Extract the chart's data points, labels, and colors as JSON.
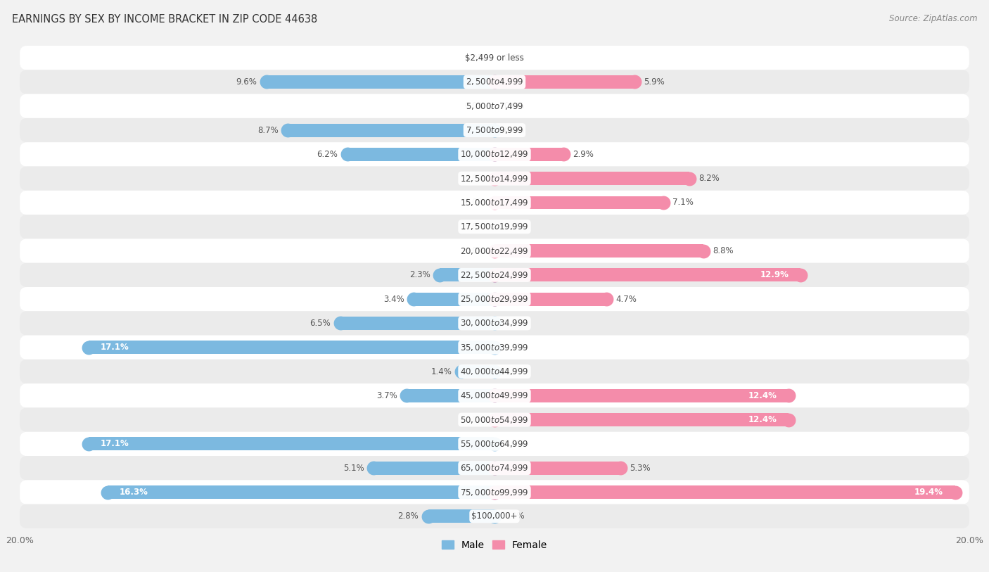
{
  "title": "EARNINGS BY SEX BY INCOME BRACKET IN ZIP CODE 44638",
  "source": "Source: ZipAtlas.com",
  "categories": [
    "$2,499 or less",
    "$2,500 to $4,999",
    "$5,000 to $7,499",
    "$7,500 to $9,999",
    "$10,000 to $12,499",
    "$12,500 to $14,999",
    "$15,000 to $17,499",
    "$17,500 to $19,999",
    "$20,000 to $22,499",
    "$22,500 to $24,999",
    "$25,000 to $29,999",
    "$30,000 to $34,999",
    "$35,000 to $39,999",
    "$40,000 to $44,999",
    "$45,000 to $49,999",
    "$50,000 to $54,999",
    "$55,000 to $64,999",
    "$65,000 to $74,999",
    "$75,000 to $99,999",
    "$100,000+"
  ],
  "male": [
    0.0,
    9.6,
    0.0,
    8.7,
    6.2,
    0.0,
    0.0,
    0.0,
    0.0,
    2.3,
    3.4,
    6.5,
    17.1,
    1.4,
    3.7,
    0.0,
    17.1,
    5.1,
    16.3,
    2.8
  ],
  "female": [
    0.0,
    5.9,
    0.0,
    0.0,
    2.9,
    8.2,
    7.1,
    0.0,
    8.8,
    12.9,
    4.7,
    0.0,
    0.0,
    0.0,
    12.4,
    12.4,
    0.0,
    5.3,
    19.4,
    0.0
  ],
  "male_color": "#7cb9e0",
  "female_color": "#f48caa",
  "bg_color": "#f2f2f2",
  "row_white": "#ffffff",
  "row_gray": "#ebebeb",
  "xlim": 20.0,
  "title_fontsize": 10.5,
  "source_fontsize": 8.5,
  "tick_fontsize": 9,
  "label_fontsize": 8.5,
  "category_fontsize": 8.5,
  "inside_label_threshold": 12.0
}
